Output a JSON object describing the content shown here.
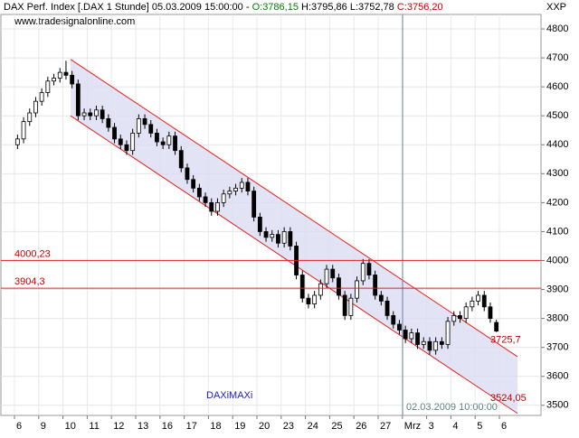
{
  "chart_data": {
    "type": "candlestick",
    "title": "DAX Perf. Index [.DAX  1 Stunde] 05.03.2009 15:00:00 -",
    "header_open": "O:3786,15",
    "header_high_low": "H:3795,86 L:3752,78",
    "header_close": "C:3756,20",
    "source": "www.tradesignalonline.com",
    "corner_label": "XXP",
    "watermark": "DAXiMAXi",
    "marker_label": "02.03.2009 10:00:00",
    "categories": [
      "6",
      null,
      null,
      null,
      "9",
      null,
      null,
      null,
      "10",
      null,
      null,
      null,
      "11",
      null,
      null,
      null,
      "12",
      null,
      null,
      null,
      "13",
      null,
      null,
      null,
      "16",
      null,
      null,
      null,
      "17",
      null,
      null,
      null,
      "18",
      null,
      null,
      null,
      "19",
      null,
      null,
      null,
      "20",
      null,
      null,
      null,
      "23",
      null,
      null,
      null,
      "24",
      null,
      null,
      null,
      "25",
      null,
      null,
      null,
      "26",
      null,
      null,
      null,
      "27",
      null,
      null,
      null,
      "Mrz",
      null,
      null,
      null,
      "3",
      null,
      null,
      null,
      "4",
      null,
      null,
      null,
      "5",
      null,
      null,
      null,
      "6",
      null,
      null,
      null
    ],
    "open": [
      4400,
      4420,
      4480,
      4510,
      4550,
      4580,
      4620,
      4630,
      4650,
      4640,
      4610,
      4500,
      4510,
      4500,
      4520,
      4490,
      4460,
      4420,
      4400,
      4380,
      4440,
      4490,
      4470,
      4440,
      4410,
      4400,
      4430,
      4380,
      4320,
      4280,
      4250,
      4220,
      4200,
      4170,
      4200,
      4230,
      4240,
      4250,
      4270,
      4240,
      4150,
      4100,
      4080,
      4090,
      4060,
      4100,
      4050,
      3950,
      3870,
      3850,
      3880,
      3920,
      3970,
      3940,
      3880,
      3810,
      3870,
      3930,
      3990,
      3950,
      3880,
      3860,
      3810,
      3780,
      3760,
      3730,
      3750,
      3710,
      3720,
      3690,
      3720,
      3710,
      3790,
      3810,
      3800,
      3840,
      3860,
      3880,
      3840,
      3786.15,
      null,
      null,
      null,
      null
    ],
    "high": [
      4435,
      4495,
      4525,
      4565,
      4595,
      4635,
      4645,
      4665,
      4690,
      4655,
      4625,
      4525,
      4525,
      4535,
      4535,
      4505,
      4475,
      4435,
      4415,
      4455,
      4505,
      4505,
      4485,
      4455,
      4425,
      4445,
      4445,
      4395,
      4335,
      4295,
      4265,
      4235,
      4215,
      4215,
      4245,
      4255,
      4265,
      4285,
      4285,
      4255,
      4165,
      4115,
      4105,
      4105,
      4115,
      4115,
      4065,
      3965,
      3885,
      3895,
      3935,
      3985,
      3985,
      3955,
      3895,
      3885,
      3945,
      4005,
      4005,
      3965,
      3895,
      3875,
      3825,
      3795,
      3775,
      3765,
      3765,
      3735,
      3735,
      3735,
      3735,
      3805,
      3825,
      3825,
      3855,
      3875,
      3895,
      3895,
      3855,
      3795.86,
      null,
      null,
      null,
      null
    ],
    "low": [
      4385,
      4405,
      4465,
      4495,
      4535,
      4565,
      4605,
      4615,
      4625,
      4595,
      4485,
      4485,
      4485,
      4485,
      4475,
      4445,
      4405,
      4385,
      4365,
      4365,
      4425,
      4455,
      4425,
      4395,
      4385,
      4385,
      4365,
      4305,
      4265,
      4235,
      4205,
      4185,
      4155,
      4155,
      4185,
      4215,
      4225,
      4235,
      4225,
      4135,
      4085,
      4065,
      4065,
      4045,
      4045,
      4035,
      3935,
      3855,
      3835,
      3835,
      3865,
      3905,
      3925,
      3865,
      3795,
      3795,
      3855,
      3915,
      3935,
      3865,
      3845,
      3795,
      3765,
      3745,
      3715,
      3715,
      3695,
      3695,
      3675,
      3675,
      3695,
      3695,
      3775,
      3785,
      3785,
      3825,
      3845,
      3825,
      3785,
      3752.78,
      null,
      null,
      null,
      null
    ],
    "close": [
      4420,
      4480,
      4510,
      4550,
      4580,
      4620,
      4630,
      4650,
      4640,
      4610,
      4500,
      4510,
      4500,
      4520,
      4490,
      4460,
      4420,
      4400,
      4380,
      4440,
      4490,
      4470,
      4440,
      4410,
      4400,
      4430,
      4380,
      4320,
      4280,
      4250,
      4220,
      4200,
      4170,
      4200,
      4230,
      4240,
      4250,
      4270,
      4240,
      4150,
      4100,
      4080,
      4090,
      4060,
      4100,
      4050,
      3950,
      3870,
      3850,
      3880,
      3920,
      3970,
      3940,
      3880,
      3810,
      3870,
      3930,
      3990,
      3950,
      3880,
      3860,
      3810,
      3780,
      3760,
      3730,
      3750,
      3710,
      3720,
      3690,
      3720,
      3710,
      3790,
      3810,
      3800,
      3840,
      3860,
      3880,
      3840,
      3800,
      3756.2,
      null,
      null,
      null,
      null
    ],
    "channel_upper": [
      4695,
      3668
    ],
    "channel_lower": [
      4500,
      3472
    ],
    "levels": [
      {
        "value": 4000.23,
        "label": "4000,23"
      },
      {
        "value": 3904.3,
        "label": "3904,3"
      }
    ],
    "annotations": [
      {
        "value": 3725.7,
        "label": "3725,7"
      },
      {
        "value": 3524.05,
        "label": "3524,05"
      }
    ],
    "ylim": [
      3465,
      4850
    ],
    "yticks": [
      3500,
      3600,
      3700,
      3800,
      3900,
      4000,
      4100,
      4200,
      4300,
      4400,
      4500,
      4600,
      4700,
      4800
    ],
    "grid": true
  }
}
